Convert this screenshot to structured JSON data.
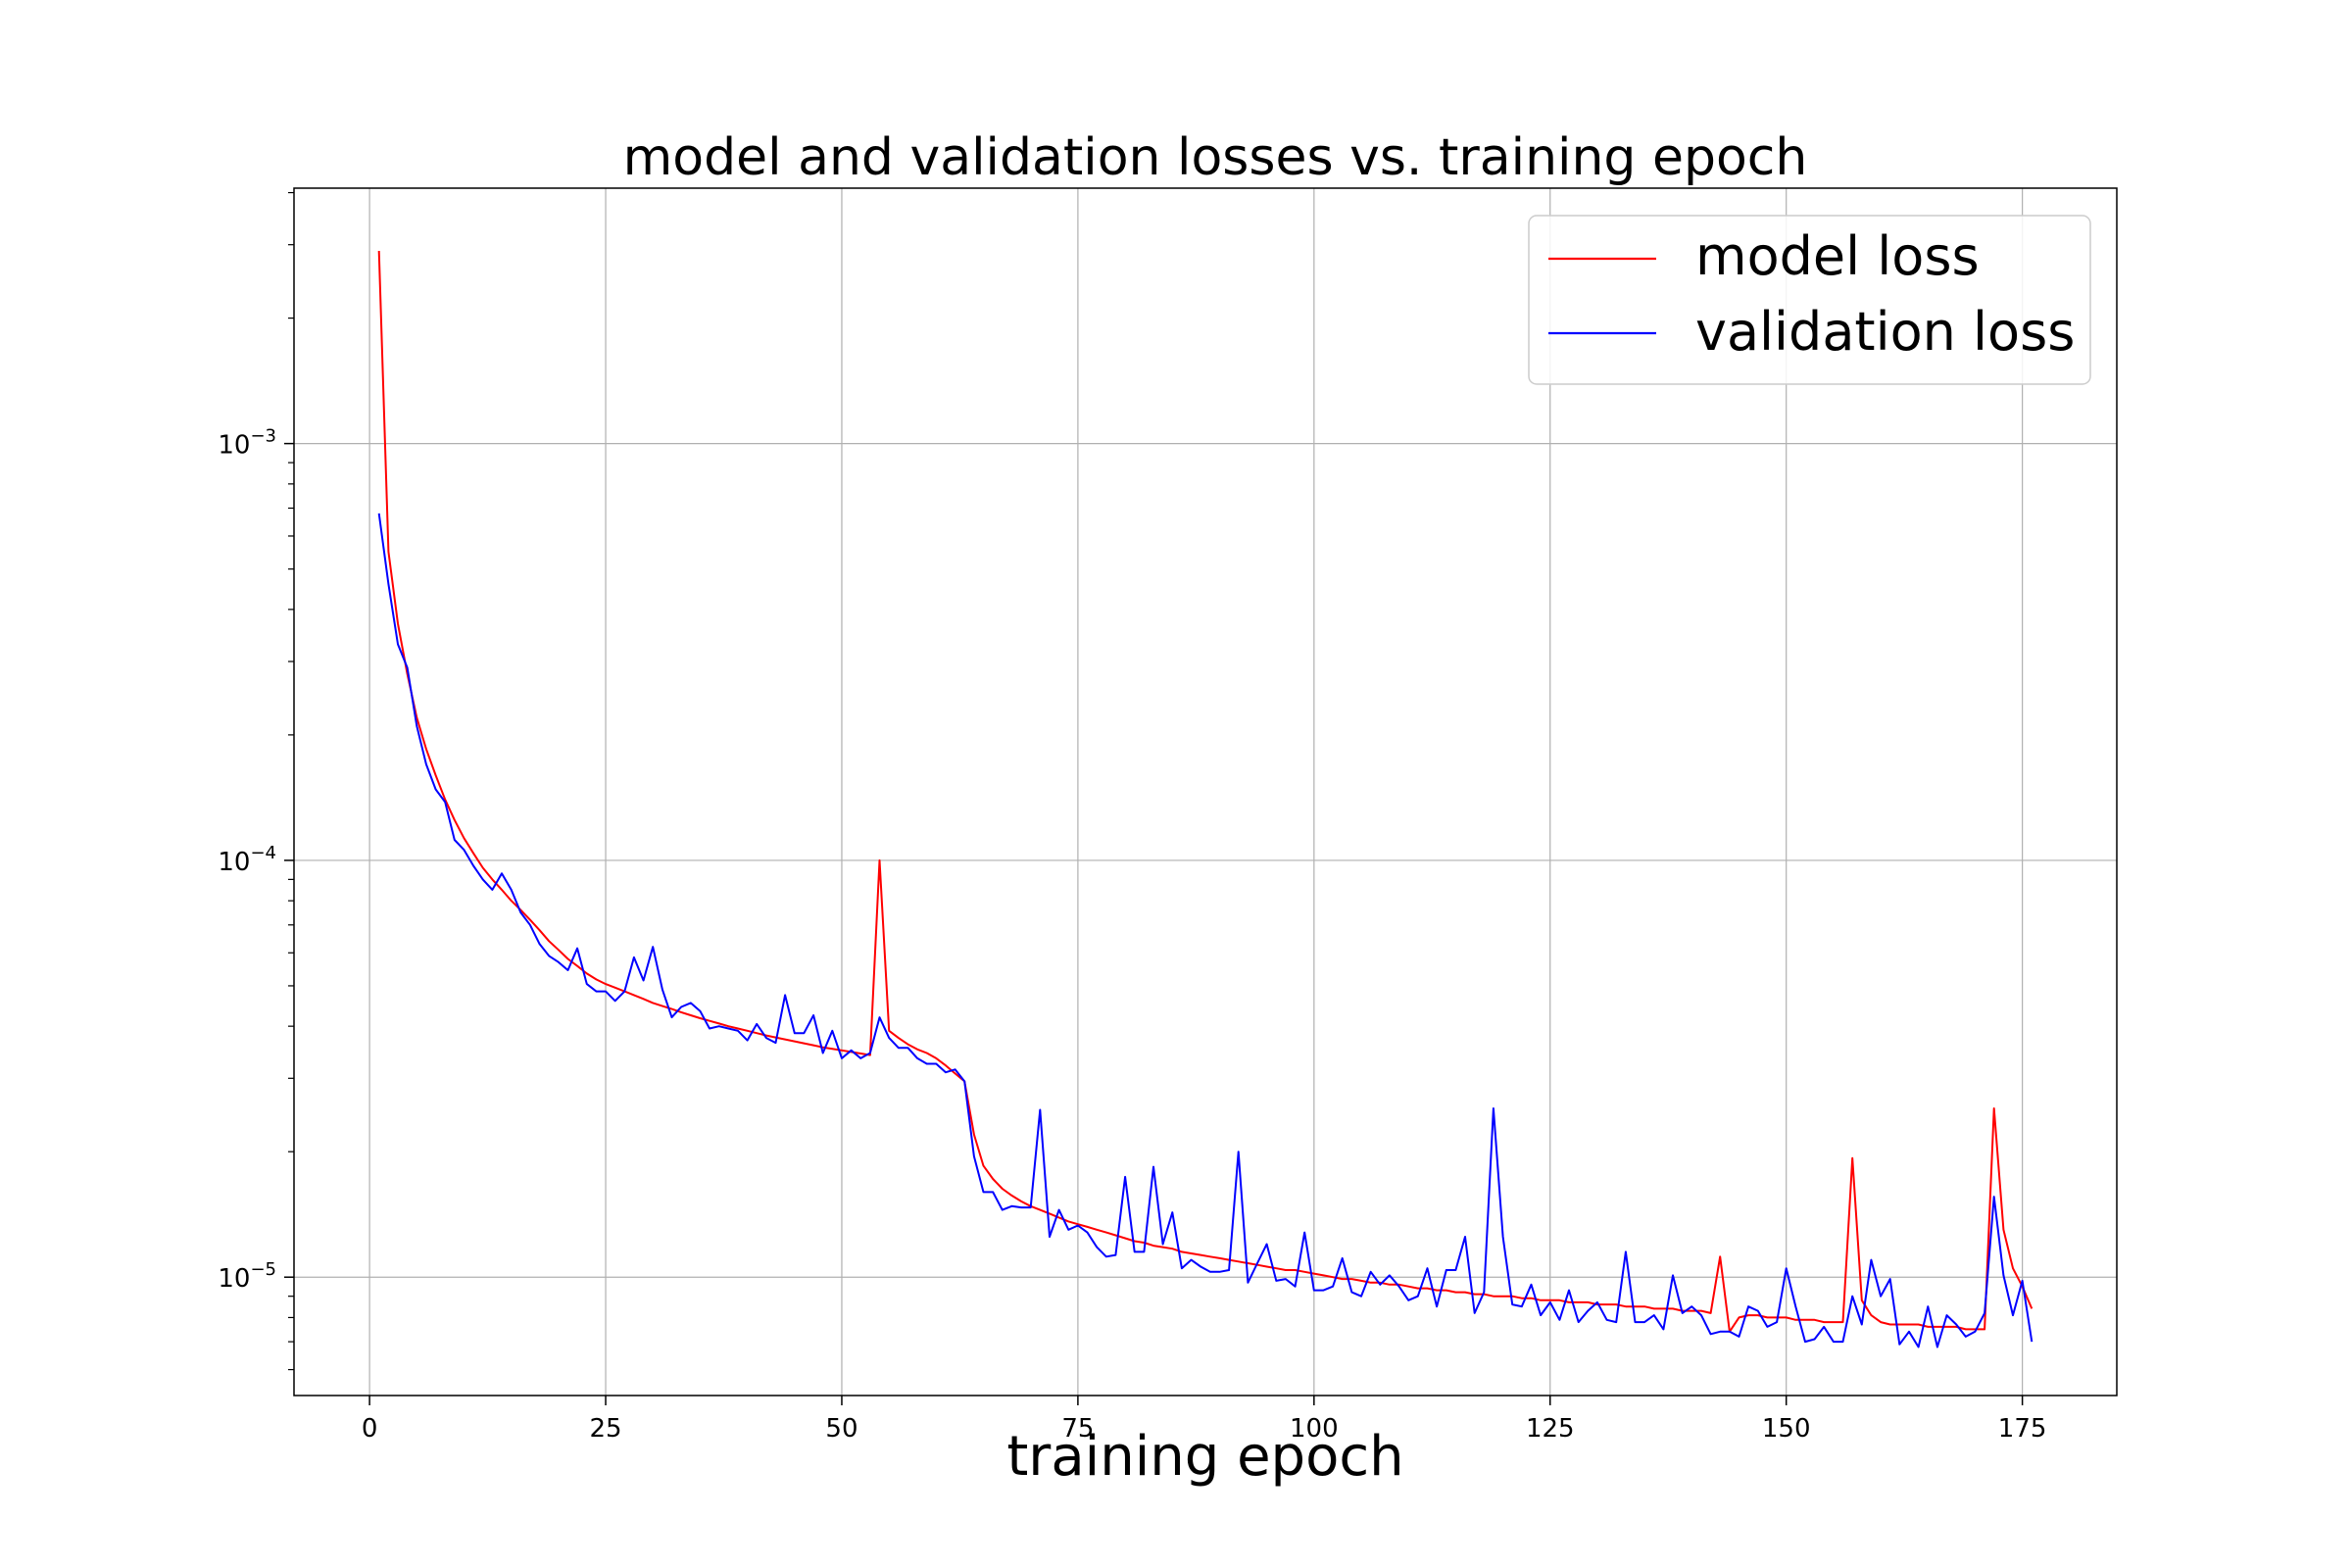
{
  "chart_data": {
    "type": "line",
    "title": "model and validation losses vs. training epoch",
    "xlabel": "training epoch",
    "ylabel": "",
    "xlim": [
      -8,
      185
    ],
    "ylim": [
      5.2e-06,
      0.0041
    ],
    "yscale": "log",
    "grid": true,
    "legend_position": "top-right",
    "x_ticks": [
      0,
      25,
      50,
      75,
      100,
      125,
      150,
      175
    ],
    "x_tick_labels": [
      "0",
      "25",
      "50",
      "75",
      "100",
      "125",
      "150",
      "175"
    ],
    "y_ticks": [
      1e-05,
      0.0001,
      0.001
    ],
    "y_tick_labels": [
      {
        "base": "10",
        "exp": "−5"
      },
      {
        "base": "10",
        "exp": "−4"
      },
      {
        "base": "10",
        "exp": "−3"
      }
    ],
    "x": [
      1,
      2,
      3,
      4,
      5,
      6,
      7,
      8,
      9,
      10,
      11,
      12,
      13,
      14,
      15,
      16,
      17,
      18,
      19,
      20,
      21,
      22,
      23,
      24,
      25,
      26,
      27,
      28,
      29,
      30,
      31,
      32,
      33,
      34,
      35,
      36,
      37,
      38,
      39,
      40,
      41,
      42,
      43,
      44,
      45,
      46,
      47,
      48,
      49,
      50,
      51,
      52,
      53,
      54,
      55,
      56,
      57,
      58,
      59,
      60,
      61,
      62,
      63,
      64,
      65,
      66,
      67,
      68,
      69,
      70,
      71,
      72,
      73,
      74,
      75,
      76,
      77,
      78,
      79,
      80,
      81,
      82,
      83,
      84,
      85,
      86,
      87,
      88,
      89,
      90,
      91,
      92,
      93,
      94,
      95,
      96,
      97,
      98,
      99,
      100,
      101,
      102,
      103,
      104,
      105,
      106,
      107,
      108,
      109,
      110,
      111,
      112,
      113,
      114,
      115,
      116,
      117,
      118,
      119,
      120,
      121,
      122,
      123,
      124,
      125,
      126,
      127,
      128,
      129,
      130,
      131,
      132,
      133,
      134,
      135,
      136,
      137,
      138,
      139,
      140,
      141,
      142,
      143,
      144,
      145,
      146,
      147,
      148,
      149,
      150,
      151,
      152,
      153,
      154,
      155,
      156,
      157,
      158,
      159,
      160,
      161,
      162,
      163,
      164,
      165,
      166,
      167,
      168,
      169,
      170,
      171,
      172,
      173,
      174,
      175,
      176
    ],
    "series": [
      {
        "name": "model loss",
        "color": "#ff0000",
        "values": [
          0.0029,
          0.00055,
          0.00037,
          0.00028,
          0.00022,
          0.000185,
          0.00016,
          0.00014,
          0.000125,
          0.000113,
          0.000104,
          9.6e-05,
          9e-05,
          8.5e-05,
          8e-05,
          7.6e-05,
          7.2e-05,
          6.8e-05,
          6.4e-05,
          6.1e-05,
          5.8e-05,
          5.58e-05,
          5.35e-05,
          5.18e-05,
          5.05e-05,
          4.95e-05,
          4.85e-05,
          4.75e-05,
          4.65e-05,
          4.55e-05,
          4.47e-05,
          4.4e-05,
          4.32e-05,
          4.25e-05,
          4.18e-05,
          4.12e-05,
          4.06e-05,
          4e-05,
          3.95e-05,
          3.9e-05,
          3.85e-05,
          3.8e-05,
          3.76e-05,
          3.72e-05,
          3.68e-05,
          3.64e-05,
          3.6e-05,
          3.56e-05,
          3.53e-05,
          3.5e-05,
          3.47e-05,
          3.44e-05,
          3.41e-05,
          0.0001,
          3.9e-05,
          3.75e-05,
          3.62e-05,
          3.52e-05,
          3.45e-05,
          3.35e-05,
          3.22e-05,
          3.08e-05,
          2.95e-05,
          2.2e-05,
          1.85e-05,
          1.72e-05,
          1.63e-05,
          1.57e-05,
          1.52e-05,
          1.48e-05,
          1.45e-05,
          1.42e-05,
          1.39e-05,
          1.36e-05,
          1.34e-05,
          1.32e-05,
          1.3e-05,
          1.28e-05,
          1.26e-05,
          1.24e-05,
          1.22e-05,
          1.21e-05,
          1.19e-05,
          1.18e-05,
          1.17e-05,
          1.15e-05,
          1.14e-05,
          1.13e-05,
          1.12e-05,
          1.11e-05,
          1.1e-05,
          1.09e-05,
          1.08e-05,
          1.07e-05,
          1.06e-05,
          1.05e-05,
          1.04e-05,
          1.04e-05,
          1.03e-05,
          1.02e-05,
          1.01e-05,
          1e-05,
          9.9e-06,
          9.9e-06,
          9.8e-06,
          9.7e-06,
          9.7e-06,
          9.6e-06,
          9.6e-06,
          9.5e-06,
          9.4e-06,
          9.4e-06,
          9.3e-06,
          9.3e-06,
          9.2e-06,
          9.2e-06,
          9.1e-06,
          9.1e-06,
          9e-06,
          9e-06,
          9e-06,
          8.9e-06,
          8.9e-06,
          8.8e-06,
          8.8e-06,
          8.8e-06,
          8.7e-06,
          8.7e-06,
          8.7e-06,
          8.6e-06,
          8.6e-06,
          8.6e-06,
          8.5e-06,
          8.5e-06,
          8.5e-06,
          8.4e-06,
          8.4e-06,
          8.4e-06,
          8.3e-06,
          8.3e-06,
          8.3e-06,
          8.2e-06,
          1.12e-05,
          7.4e-06,
          8e-06,
          8.1e-06,
          8.1e-06,
          8e-06,
          8e-06,
          8e-06,
          7.9e-06,
          7.9e-06,
          7.9e-06,
          7.8e-06,
          7.8e-06,
          7.8e-06,
          1.93e-05,
          8.8e-06,
          8.1e-06,
          7.8e-06,
          7.7e-06,
          7.7e-06,
          7.7e-06,
          7.7e-06,
          7.6e-06,
          7.6e-06,
          7.6e-06,
          7.6e-06,
          7.5e-06,
          7.5e-06,
          7.5e-06,
          2.54e-05,
          1.3e-05,
          1.05e-05,
          9.5e-06,
          8.4e-06
        ]
      },
      {
        "name": "validation loss",
        "color": "#0000ff",
        "values": [
          0.00068,
          0.00046,
          0.00033,
          0.00029,
          0.00021,
          0.00017,
          0.000148,
          0.000138,
          0.000112,
          0.000106,
          9.7e-05,
          9e-05,
          8.5e-05,
          9.3e-05,
          8.5e-05,
          7.5e-05,
          7e-05,
          6.3e-05,
          5.9e-05,
          5.7e-05,
          5.45e-05,
          6.15e-05,
          5.05e-05,
          4.85e-05,
          4.85e-05,
          4.6e-05,
          4.85e-05,
          5.85e-05,
          5.15e-05,
          6.2e-05,
          4.9e-05,
          4.2e-05,
          4.45e-05,
          4.55e-05,
          4.35e-05,
          3.95e-05,
          4e-05,
          3.95e-05,
          3.9e-05,
          3.7e-05,
          4.05e-05,
          3.75e-05,
          3.65e-05,
          4.75e-05,
          3.85e-05,
          3.85e-05,
          4.25e-05,
          3.45e-05,
          3.9e-05,
          3.35e-05,
          3.5e-05,
          3.35e-05,
          3.45e-05,
          4.2e-05,
          3.75e-05,
          3.55e-05,
          3.55e-05,
          3.35e-05,
          3.25e-05,
          3.25e-05,
          3.1e-05,
          3.15e-05,
          2.95e-05,
          1.95e-05,
          1.6e-05,
          1.6e-05,
          1.45e-05,
          1.48e-05,
          1.47e-05,
          1.47e-05,
          2.52e-05,
          1.25e-05,
          1.45e-05,
          1.3e-05,
          1.33e-05,
          1.28e-05,
          1.18e-05,
          1.12e-05,
          1.13e-05,
          1.74e-05,
          1.15e-05,
          1.15e-05,
          1.84e-05,
          1.2e-05,
          1.43e-05,
          1.05e-05,
          1.1e-05,
          1.06e-05,
          1.03e-05,
          1.03e-05,
          1.04e-05,
          2e-05,
          9.7e-06,
          1.08e-05,
          1.2e-05,
          9.8e-06,
          9.9e-06,
          9.5e-06,
          1.28e-05,
          9.3e-06,
          9.3e-06,
          9.5e-06,
          1.11e-05,
          9.2e-06,
          9e-06,
          1.03e-05,
          9.6e-06,
          1.01e-05,
          9.5e-06,
          8.8e-06,
          9e-06,
          1.05e-05,
          8.5e-06,
          1.04e-05,
          1.04e-05,
          1.25e-05,
          8.2e-06,
          9.2e-06,
          2.54e-05,
          1.25e-05,
          8.6e-06,
          8.5e-06,
          9.6e-06,
          8.1e-06,
          8.7e-06,
          7.9e-06,
          9.3e-06,
          7.8e-06,
          8.3e-06,
          8.7e-06,
          7.9e-06,
          7.8e-06,
          1.15e-05,
          7.8e-06,
          7.8e-06,
          8.1e-06,
          7.5e-06,
          1.01e-05,
          8.2e-06,
          8.5e-06,
          8.1e-06,
          7.3e-06,
          7.4e-06,
          7.4e-06,
          7.2e-06,
          8.5e-06,
          8.3e-06,
          7.6e-06,
          7.8e-06,
          1.05e-05,
          8.5e-06,
          7e-06,
          7.1e-06,
          7.6e-06,
          7e-06,
          7e-06,
          9e-06,
          7.7e-06,
          1.1e-05,
          9e-06,
          9.9e-06,
          6.9e-06,
          7.4e-06,
          6.8e-06,
          8.5e-06,
          6.8e-06,
          8.1e-06,
          7.7e-06,
          7.2e-06,
          7.4e-06,
          8.2e-06,
          1.56e-05,
          1.01e-05,
          8.1e-06,
          9.8e-06,
          7e-06
        ]
      }
    ]
  }
}
